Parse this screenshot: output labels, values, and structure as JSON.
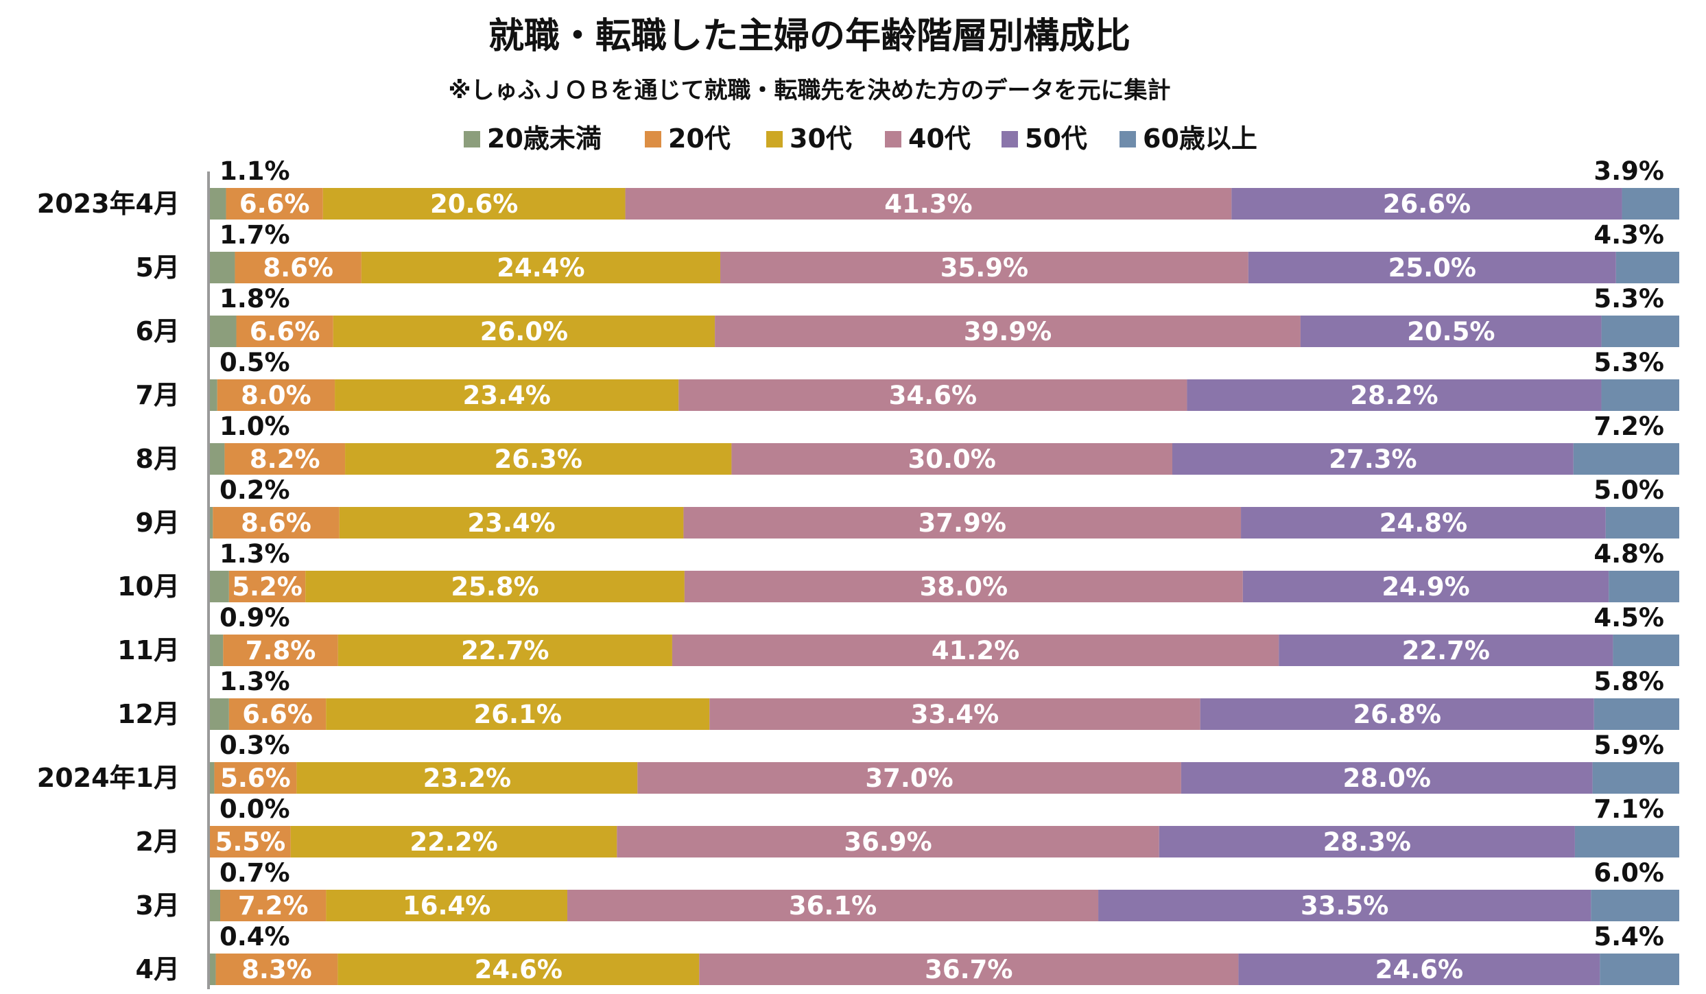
{
  "chart_data": {
    "type": "bar",
    "orientation": "horizontal",
    "stacked": "100%",
    "title": "就職・転職した主婦の年齢階層別構成比",
    "subtitle": "※しゅふＪＯＢを通じて就職・転職先を決めた方のデータを元に集計",
    "legend_position": "top",
    "categories": [
      "2023年4月",
      "5月",
      "6月",
      "7月",
      "8月",
      "9月",
      "10月",
      "11月",
      "12月",
      "2024年1月",
      "2月",
      "3月",
      "4月"
    ],
    "series": [
      {
        "name": "20歳未満",
        "color": "#8c9e7c",
        "values": [
          1.1,
          1.7,
          1.8,
          0.5,
          1.0,
          0.2,
          1.3,
          0.9,
          1.3,
          0.3,
          0.0,
          0.7,
          0.4
        ],
        "labels": [
          "1.1%",
          "1.7%",
          "1.8%",
          "0.5%",
          "1.0%",
          "0.2%",
          "1.3%",
          "0.9%",
          "1.3%",
          "0.3%",
          "0.0%",
          "0.7%",
          "0.4%"
        ]
      },
      {
        "name": "20代",
        "color": "#dc8e44",
        "values": [
          6.6,
          8.6,
          6.6,
          8.0,
          8.2,
          8.6,
          5.2,
          7.8,
          6.6,
          5.6,
          5.5,
          7.2,
          8.3
        ],
        "labels": [
          "6.6%",
          "8.6%",
          "6.6%",
          "8.0%",
          "8.2%",
          "8.6%",
          "5.2%",
          "7.8%",
          "6.6%",
          "5.6%",
          "5.5%",
          "7.2%",
          "8.3%"
        ]
      },
      {
        "name": "30代",
        "color": "#cda724",
        "values": [
          20.6,
          24.4,
          26.0,
          23.4,
          26.3,
          23.4,
          25.8,
          22.7,
          26.1,
          23.2,
          22.2,
          16.4,
          24.6
        ],
        "labels": [
          "20.6%",
          "24.4%",
          "26.0%",
          "23.4%",
          "26.3%",
          "23.4%",
          "25.8%",
          "22.7%",
          "26.1%",
          "23.2%",
          "22.2%",
          "16.4%",
          "24.6%"
        ]
      },
      {
        "name": "40代",
        "color": "#b88192",
        "values": [
          41.3,
          35.9,
          39.9,
          34.6,
          30.0,
          37.9,
          38.0,
          41.2,
          33.4,
          37.0,
          36.9,
          36.1,
          36.7
        ],
        "labels": [
          "41.3%",
          "35.9%",
          "39.9%",
          "34.6%",
          "30.0%",
          "37.9%",
          "38.0%",
          "41.2%",
          "33.4%",
          "37.0%",
          "36.9%",
          "36.1%",
          "36.7%"
        ]
      },
      {
        "name": "50代",
        "color": "#8a75aa",
        "values": [
          26.6,
          25.0,
          20.5,
          28.2,
          27.3,
          24.8,
          24.9,
          22.7,
          26.8,
          28.0,
          28.3,
          33.5,
          24.6
        ],
        "labels": [
          "26.6%",
          "25.0%",
          "20.5%",
          "28.2%",
          "27.3%",
          "24.8%",
          "24.9%",
          "22.7%",
          "26.8%",
          "28.0%",
          "28.3%",
          "33.5%",
          "24.6%"
        ]
      },
      {
        "name": "60歳以上",
        "color": "#6f8cab",
        "values": [
          3.9,
          4.3,
          5.3,
          5.3,
          7.2,
          5.0,
          4.8,
          4.5,
          5.8,
          5.9,
          7.1,
          6.0,
          5.4
        ],
        "labels": [
          "3.9%",
          "4.3%",
          "5.3%",
          "5.3%",
          "7.2%",
          "5.0%",
          "4.8%",
          "4.5%",
          "5.8%",
          "5.9%",
          "7.1%",
          "6.0%",
          "5.4%"
        ]
      }
    ],
    "xlim": [
      0,
      100
    ],
    "grid": false
  }
}
